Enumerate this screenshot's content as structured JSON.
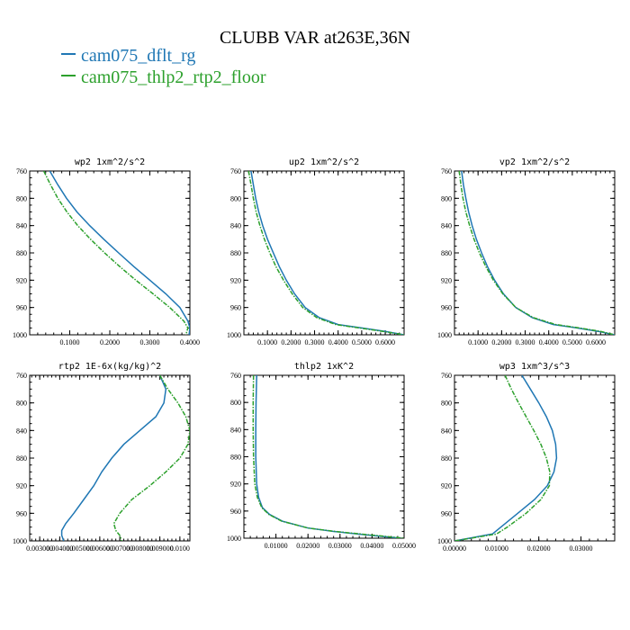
{
  "figure": {
    "title": "CLUBB VAR at263E,36N",
    "legend": [
      {
        "label": "cam075_dflt_rg",
        "color": "#1f77b4"
      },
      {
        "label": "cam075_thlp2_rtp2_floor",
        "color": "#2ca02c"
      }
    ]
  },
  "chart_data": [
    {
      "type": "line",
      "title": "wp2  1xm^2/s^2",
      "xlim": [
        0.0,
        0.4
      ],
      "ylim": [
        1000,
        760
      ],
      "xticks": [
        0.1,
        0.2,
        0.3,
        0.4
      ],
      "xtick_labels": [
        "0.1000",
        "0.2000",
        "0.3000",
        "0.4000"
      ],
      "yticks": [
        760,
        800,
        840,
        880,
        920,
        960,
        1000
      ],
      "series": [
        {
          "name": "cam075_dflt_rg",
          "y": [
            760,
            780,
            800,
            820,
            840,
            860,
            880,
            900,
            920,
            940,
            960,
            980,
            990,
            1000
          ],
          "values": [
            0.05,
            0.07,
            0.092,
            0.118,
            0.15,
            0.185,
            0.222,
            0.26,
            0.3,
            0.34,
            0.375,
            0.395,
            0.4,
            0.398
          ]
        },
        {
          "name": "cam075_thlp2_rtp2_floor",
          "y": [
            760,
            780,
            800,
            820,
            840,
            860,
            880,
            900,
            920,
            940,
            960,
            980,
            990,
            1000
          ],
          "values": [
            0.035,
            0.052,
            0.07,
            0.093,
            0.12,
            0.152,
            0.187,
            0.225,
            0.265,
            0.308,
            0.35,
            0.385,
            0.395,
            0.39
          ]
        }
      ]
    },
    {
      "type": "line",
      "title": "up2  1xm^2/s^2",
      "xlim": [
        0.0,
        0.68
      ],
      "ylim": [
        1000,
        760
      ],
      "xticks": [
        0.1,
        0.2,
        0.3,
        0.4,
        0.5,
        0.6
      ],
      "xtick_labels": [
        "0.1000",
        "0.2000",
        "0.3000",
        "0.4000",
        "0.5000",
        "0.6000"
      ],
      "yticks": [
        760,
        800,
        840,
        880,
        920,
        960,
        1000
      ],
      "series": [
        {
          "name": "cam075_dflt_rg",
          "y": [
            760,
            780,
            800,
            820,
            840,
            860,
            880,
            900,
            920,
            940,
            960,
            975,
            985,
            990,
            995,
            1000
          ],
          "values": [
            0.03,
            0.04,
            0.05,
            0.063,
            0.08,
            0.1,
            0.125,
            0.15,
            0.18,
            0.215,
            0.26,
            0.32,
            0.4,
            0.5,
            0.6,
            0.68
          ]
        },
        {
          "name": "cam075_thlp2_rtp2_floor",
          "y": [
            760,
            780,
            800,
            820,
            840,
            860,
            880,
            900,
            920,
            940,
            960,
            975,
            985,
            990,
            995,
            1000
          ],
          "values": [
            0.02,
            0.03,
            0.04,
            0.052,
            0.068,
            0.087,
            0.11,
            0.136,
            0.168,
            0.205,
            0.25,
            0.31,
            0.39,
            0.49,
            0.59,
            0.68
          ]
        }
      ]
    },
    {
      "type": "line",
      "title": "vp2  1xm^2/s^2",
      "xlim": [
        0.0,
        0.68
      ],
      "ylim": [
        1000,
        760
      ],
      "xticks": [
        0.1,
        0.2,
        0.3,
        0.4,
        0.5,
        0.6
      ],
      "xtick_labels": [
        "0.1000",
        "0.2000",
        "0.3000",
        "0.4000",
        "0.5000",
        "0.6000"
      ],
      "yticks": [
        760,
        800,
        840,
        880,
        920,
        960,
        1000
      ],
      "series": [
        {
          "name": "cam075_dflt_rg",
          "y": [
            760,
            780,
            800,
            820,
            840,
            860,
            880,
            900,
            920,
            940,
            960,
            975,
            985,
            990,
            995,
            1000
          ],
          "values": [
            0.03,
            0.038,
            0.048,
            0.06,
            0.075,
            0.093,
            0.115,
            0.14,
            0.17,
            0.208,
            0.26,
            0.33,
            0.42,
            0.52,
            0.61,
            0.68
          ]
        },
        {
          "name": "cam075_thlp2_rtp2_floor",
          "y": [
            760,
            780,
            800,
            820,
            840,
            860,
            880,
            900,
            920,
            940,
            960,
            975,
            985,
            990,
            995,
            1000
          ],
          "values": [
            0.02,
            0.027,
            0.036,
            0.048,
            0.064,
            0.083,
            0.106,
            0.133,
            0.165,
            0.205,
            0.26,
            0.335,
            0.43,
            0.53,
            0.62,
            0.68
          ]
        }
      ]
    },
    {
      "type": "line",
      "title": "rtp2  1E-6x(kg/kg)^2",
      "xlim": [
        0.0025,
        0.0105
      ],
      "ylim": [
        1000,
        760
      ],
      "xticks": [
        0.003,
        0.004,
        0.005,
        0.006,
        0.007,
        0.008,
        0.009,
        0.01
      ],
      "xtick_labels": [
        "0.003000",
        "0.004000",
        "0.005000",
        "0.006000",
        "0.007000",
        "0.008000",
        "0.009000",
        "0.0100"
      ],
      "yticks": [
        760,
        800,
        840,
        880,
        920,
        960,
        1000
      ],
      "series": [
        {
          "name": "cam075_dflt_rg",
          "y": [
            760,
            780,
            800,
            820,
            840,
            860,
            880,
            900,
            920,
            940,
            960,
            975,
            985,
            992,
            1000
          ],
          "values": [
            0.009,
            0.0093,
            0.0092,
            0.0088,
            0.008,
            0.0072,
            0.0066,
            0.0061,
            0.0057,
            0.0052,
            0.0047,
            0.0043,
            0.0041,
            0.0041,
            0.0042
          ]
        },
        {
          "name": "cam075_thlp2_rtp2_floor",
          "y": [
            760,
            780,
            800,
            820,
            840,
            860,
            880,
            900,
            920,
            940,
            960,
            975,
            985,
            992,
            1000
          ],
          "values": [
            0.009,
            0.0094,
            0.0099,
            0.0103,
            0.0105,
            0.0104,
            0.01,
            0.0093,
            0.0085,
            0.0076,
            0.007,
            0.0067,
            0.0068,
            0.007,
            0.0071
          ]
        }
      ]
    },
    {
      "type": "line",
      "title": "thlp2  1xK^2",
      "xlim": [
        0.0,
        0.05
      ],
      "ylim": [
        1000,
        760
      ],
      "xticks": [
        0.01,
        0.02,
        0.03,
        0.04,
        0.05
      ],
      "xtick_labels": [
        "0.01000",
        "0.02000",
        "0.03000",
        "0.04000",
        "0.05000"
      ],
      "yticks": [
        760,
        800,
        840,
        880,
        920,
        960,
        1000
      ],
      "series": [
        {
          "name": "cam075_dflt_rg",
          "y": [
            760,
            800,
            840,
            880,
            920,
            940,
            955,
            965,
            975,
            985,
            990,
            995,
            1000
          ],
          "values": [
            0.004,
            0.0038,
            0.0037,
            0.0037,
            0.004,
            0.0046,
            0.0058,
            0.008,
            0.012,
            0.02,
            0.028,
            0.038,
            0.049
          ]
        },
        {
          "name": "cam075_thlp2_rtp2_floor",
          "y": [
            760,
            800,
            840,
            880,
            920,
            940,
            955,
            965,
            975,
            985,
            990,
            995,
            1000
          ],
          "values": [
            0.003,
            0.0029,
            0.0029,
            0.003,
            0.0034,
            0.0042,
            0.0056,
            0.0078,
            0.0118,
            0.02,
            0.0285,
            0.039,
            0.05
          ]
        }
      ]
    },
    {
      "type": "line",
      "title": "wp3  1xm^3/s^3",
      "xlim": [
        0.0,
        0.038
      ],
      "ylim": [
        1000,
        760
      ],
      "xticks": [
        0.0,
        0.01,
        0.02,
        0.03
      ],
      "xtick_labels": [
        "0.00000",
        "0.01000",
        "0.02000",
        "0.03000"
      ],
      "yticks": [
        760,
        800,
        840,
        880,
        920,
        960,
        1000
      ],
      "series": [
        {
          "name": "cam075_dflt_rg",
          "y": [
            760,
            780,
            800,
            820,
            840,
            860,
            880,
            900,
            920,
            940,
            960,
            980,
            990,
            1000
          ],
          "values": [
            0.016,
            0.018,
            0.02,
            0.0218,
            0.0232,
            0.024,
            0.0242,
            0.0236,
            0.022,
            0.019,
            0.015,
            0.011,
            0.009,
            0.0
          ]
        },
        {
          "name": "cam075_thlp2_rtp2_floor",
          "y": [
            760,
            780,
            800,
            820,
            840,
            860,
            880,
            900,
            920,
            940,
            960,
            980,
            990,
            1000
          ],
          "values": [
            0.012,
            0.0135,
            0.0152,
            0.017,
            0.0188,
            0.0205,
            0.0218,
            0.0226,
            0.0225,
            0.0205,
            0.017,
            0.0125,
            0.01,
            0.0
          ]
        }
      ]
    }
  ]
}
